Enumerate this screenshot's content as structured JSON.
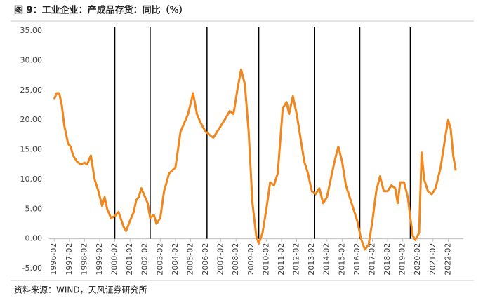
{
  "chart_data": {
    "type": "line",
    "title": "图 9：工业企业：产成品存货：同比（%）",
    "source": "资料来源：WIND，天风证券研究所",
    "series": [
      {
        "name": "工业企业：产成品存货：同比",
        "color": "#f0861c",
        "x": [
          "1996-02",
          "1996-04",
          "1996-06",
          "1996-08",
          "1996-10",
          "1997-01",
          "1997-03",
          "1997-05",
          "1997-08",
          "1997-11",
          "1998-02",
          "1998-04",
          "1998-07",
          "1998-10",
          "1999-01",
          "1999-04",
          "1999-06",
          "1999-08",
          "1999-11",
          "2000-02",
          "2000-05",
          "2000-09",
          "2000-11",
          "2001-02",
          "2001-05",
          "2001-07",
          "2001-09",
          "2001-11",
          "2002-02",
          "2002-04",
          "2002-06",
          "2002-09",
          "2002-11",
          "2003-02",
          "2003-05",
          "2003-09",
          "2004-02",
          "2004-06",
          "2004-09",
          "2004-12",
          "2005-04",
          "2005-07",
          "2005-10",
          "2006-02",
          "2006-05",
          "2006-08",
          "2006-11",
          "2007-02",
          "2007-05",
          "2007-09",
          "2007-12",
          "2008-03",
          "2008-06",
          "2008-09",
          "2008-12",
          "2009-03",
          "2009-06",
          "2009-08",
          "2009-11",
          "2010-02",
          "2010-05",
          "2010-08",
          "2010-11",
          "2011-03",
          "2011-06",
          "2011-08",
          "2011-11",
          "2012-02",
          "2012-05",
          "2012-08",
          "2012-11",
          "2013-02",
          "2013-05",
          "2013-08",
          "2013-11",
          "2014-02",
          "2014-05",
          "2014-08",
          "2014-11",
          "2015-02",
          "2015-05",
          "2015-08",
          "2015-11",
          "2016-02",
          "2016-05",
          "2016-08",
          "2016-11",
          "2017-02",
          "2017-05",
          "2017-08",
          "2017-11",
          "2018-02",
          "2018-05",
          "2018-08",
          "2018-10",
          "2018-12",
          "2019-03",
          "2019-06",
          "2019-08",
          "2019-10",
          "2019-12",
          "2020-03",
          "2020-05",
          "2020-07",
          "2020-10",
          "2021-01",
          "2021-04",
          "2021-08",
          "2021-12",
          "2022-02",
          "2022-04",
          "2022-06",
          "2022-08"
        ],
        "values": [
          23.5,
          24.5,
          24.5,
          22.5,
          19,
          16,
          15.5,
          14,
          13,
          12.5,
          12.8,
          12.5,
          14,
          10,
          8,
          5.5,
          7,
          5,
          3.5,
          3.8,
          4.5,
          2,
          1.3,
          3,
          4.5,
          6.5,
          7,
          8.5,
          7,
          6,
          3.5,
          4,
          2.5,
          3.5,
          8,
          11,
          12,
          18,
          19.5,
          21,
          24.5,
          21,
          19.5,
          18,
          17.5,
          17,
          18,
          19,
          20,
          21.5,
          21,
          25,
          28.5,
          26,
          18,
          6,
          0.5,
          -0.8,
          1,
          5,
          9.5,
          9,
          11,
          22,
          23,
          21,
          24,
          21,
          17,
          13,
          11,
          8,
          7.5,
          8.5,
          6,
          7,
          10,
          13,
          15.5,
          13,
          9,
          7,
          5,
          3,
          0,
          -1.8,
          -1,
          3,
          8,
          10.5,
          8,
          8,
          9,
          8.5,
          6,
          9.5,
          9.5,
          7,
          3.5,
          0.5,
          -0.2,
          1,
          14.5,
          10,
          8,
          7.5,
          8.5,
          12,
          17.5,
          20,
          18.5,
          14,
          11.5
        ]
      }
    ],
    "vlines": [
      "2000-02",
      "2002-06",
      "2006-03",
      "2009-08",
      "2013-04",
      "2016-04",
      "2019-08"
    ],
    "xlim": [
      "1995-10",
      "2023-02"
    ],
    "xticks": [
      "1996-02",
      "1997-02",
      "1998-02",
      "1999-02",
      "2000-02",
      "2001-02",
      "2002-02",
      "2003-02",
      "2004-02",
      "2005-02",
      "2006-02",
      "2007-02",
      "2008-02",
      "2009-02",
      "2010-02",
      "2011-02",
      "2012-02",
      "2013-02",
      "2014-02",
      "2015-02",
      "2016-02",
      "2017-02",
      "2018-02",
      "2019-02",
      "2020-02",
      "2021-02",
      "2022-02"
    ],
    "ylim": [
      -5,
      35
    ],
    "yticks": [
      {
        "value": -5,
        "label": "-5.00"
      },
      {
        "value": 0,
        "label": "0.00"
      },
      {
        "value": 5,
        "label": "5.00"
      },
      {
        "value": 10,
        "label": "10.00"
      },
      {
        "value": 15,
        "label": "15.00"
      },
      {
        "value": 20,
        "label": "20.00"
      },
      {
        "value": 25,
        "label": "25.00"
      },
      {
        "value": 30,
        "label": "30.00"
      },
      {
        "value": 35,
        "label": "35.00"
      }
    ],
    "grid": false
  }
}
